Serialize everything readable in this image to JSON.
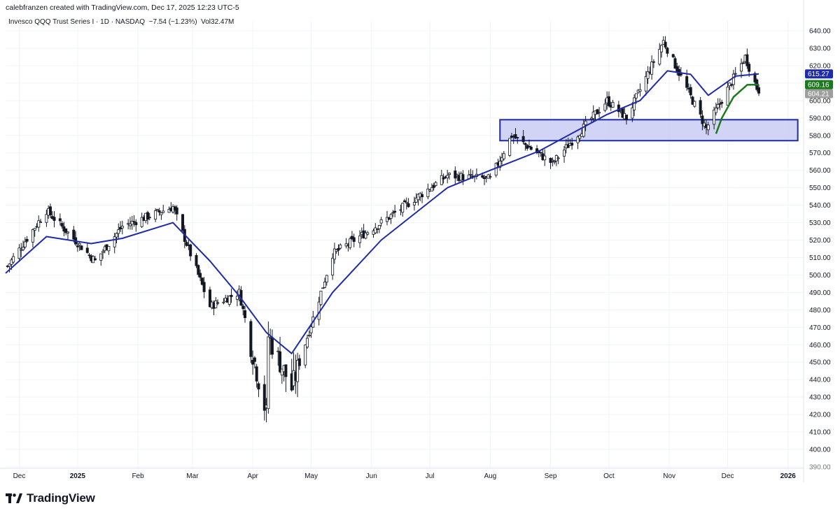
{
  "header": {
    "credit": "calebfranzen created with TradingView.com, Dec 17, 2025 12:23 UTC-5",
    "symbol": "Invesco QQQ Trust Series I · 1D · NASDAQ",
    "change": "−7.54 (−1.23%)",
    "volume": "Vol32.47M"
  },
  "brand": {
    "name": "TradingView",
    "logo_icon": "tradingview-logo-icon"
  },
  "colors": {
    "up": "#ffffff",
    "down": "#131722",
    "wick": "#131722",
    "ema": "#1f2ba8",
    "short_ma": "#1b7a1b",
    "zone_fill": "#c9cdf2",
    "zone_stroke": "#1f2ba8",
    "tag_ema": "#1f2ba8",
    "tag_ma": "#1b7a1b",
    "tag_last": "#9e9e9e"
  },
  "chart_data": {
    "type": "candlestick",
    "y_axis": {
      "position": "right",
      "range": [
        390,
        640
      ],
      "ticks": [
        "640.00",
        "630.00",
        "620.00",
        "610.00",
        "600.00",
        "590.00",
        "580.00",
        "570.00",
        "560.00",
        "550.00",
        "540.00",
        "530.00",
        "520.00",
        "510.00",
        "500.00",
        "490.00",
        "480.00",
        "470.00",
        "460.00",
        "450.00",
        "440.00",
        "430.00",
        "420.00",
        "410.00",
        "400.00",
        "390.00"
      ]
    },
    "x_axis": {
      "ticks": [
        "Dec",
        "2025",
        "Feb",
        "Mar",
        "Apr",
        "May",
        "Jun",
        "Jul",
        "Aug",
        "Sep",
        "Oct",
        "Nov",
        "Dec",
        "2026"
      ],
      "range": [
        "2024-11-25",
        "2026-01-09"
      ]
    },
    "price_tags": [
      {
        "label": "615.27",
        "value": 615.27,
        "color": "#1f2ba8"
      },
      {
        "label": "609.16",
        "value": 609.16,
        "color": "#1b7a1b"
      },
      {
        "label": "604.21",
        "value": 604.21,
        "color": "#9e9e9e"
      }
    ],
    "zone": {
      "from_date": "2025-08-06",
      "to_date": "2026-01-06",
      "low": 577,
      "high": 589
    },
    "key_closes": [
      {
        "date": "2024-11-26",
        "close": 505
      },
      {
        "date": "2024-12-16",
        "close": 537
      },
      {
        "date": "2025-01-10",
        "close": 508
      },
      {
        "date": "2025-01-24",
        "close": 528
      },
      {
        "date": "2025-02-19",
        "close": 539
      },
      {
        "date": "2025-03-10",
        "close": 482
      },
      {
        "date": "2025-03-25",
        "close": 490
      },
      {
        "date": "2025-04-08",
        "close": 420
      },
      {
        "date": "2025-04-09",
        "close": 465
      },
      {
        "date": "2025-04-21",
        "close": 435
      },
      {
        "date": "2025-05-12",
        "close": 512
      },
      {
        "date": "2025-06-06",
        "close": 530
      },
      {
        "date": "2025-07-10",
        "close": 557
      },
      {
        "date": "2025-08-01",
        "close": 555
      },
      {
        "date": "2025-08-12",
        "close": 580
      },
      {
        "date": "2025-09-02",
        "close": 564
      },
      {
        "date": "2025-09-30",
        "close": 600
      },
      {
        "date": "2025-10-10",
        "close": 590
      },
      {
        "date": "2025-10-29",
        "close": 634
      },
      {
        "date": "2025-11-20",
        "close": 584
      },
      {
        "date": "2025-12-10",
        "close": 625
      },
      {
        "date": "2025-12-17",
        "close": 604.21
      }
    ],
    "ema_line": [
      {
        "date": "2024-11-25",
        "value": 501
      },
      {
        "date": "2024-12-16",
        "value": 522
      },
      {
        "date": "2025-01-08",
        "value": 518
      },
      {
        "date": "2025-01-24",
        "value": 521
      },
      {
        "date": "2025-02-19",
        "value": 530
      },
      {
        "date": "2025-03-10",
        "value": 508
      },
      {
        "date": "2025-03-25",
        "value": 488
      },
      {
        "date": "2025-04-08",
        "value": 467
      },
      {
        "date": "2025-04-21",
        "value": 455
      },
      {
        "date": "2025-05-12",
        "value": 490
      },
      {
        "date": "2025-06-06",
        "value": 520
      },
      {
        "date": "2025-07-10",
        "value": 550
      },
      {
        "date": "2025-08-01",
        "value": 560
      },
      {
        "date": "2025-08-26",
        "value": 571
      },
      {
        "date": "2025-09-30",
        "value": 592
      },
      {
        "date": "2025-10-17",
        "value": 600
      },
      {
        "date": "2025-10-31",
        "value": 617
      },
      {
        "date": "2025-11-12",
        "value": 615
      },
      {
        "date": "2025-11-21",
        "value": 603
      },
      {
        "date": "2025-12-05",
        "value": 614
      },
      {
        "date": "2025-12-17",
        "value": 615.27
      }
    ],
    "short_ma_line": [
      {
        "date": "2025-11-25",
        "value": 581
      },
      {
        "date": "2025-11-28",
        "value": 590
      },
      {
        "date": "2025-12-04",
        "value": 602
      },
      {
        "date": "2025-12-11",
        "value": 609
      },
      {
        "date": "2025-12-17",
        "value": 609.16
      }
    ]
  }
}
